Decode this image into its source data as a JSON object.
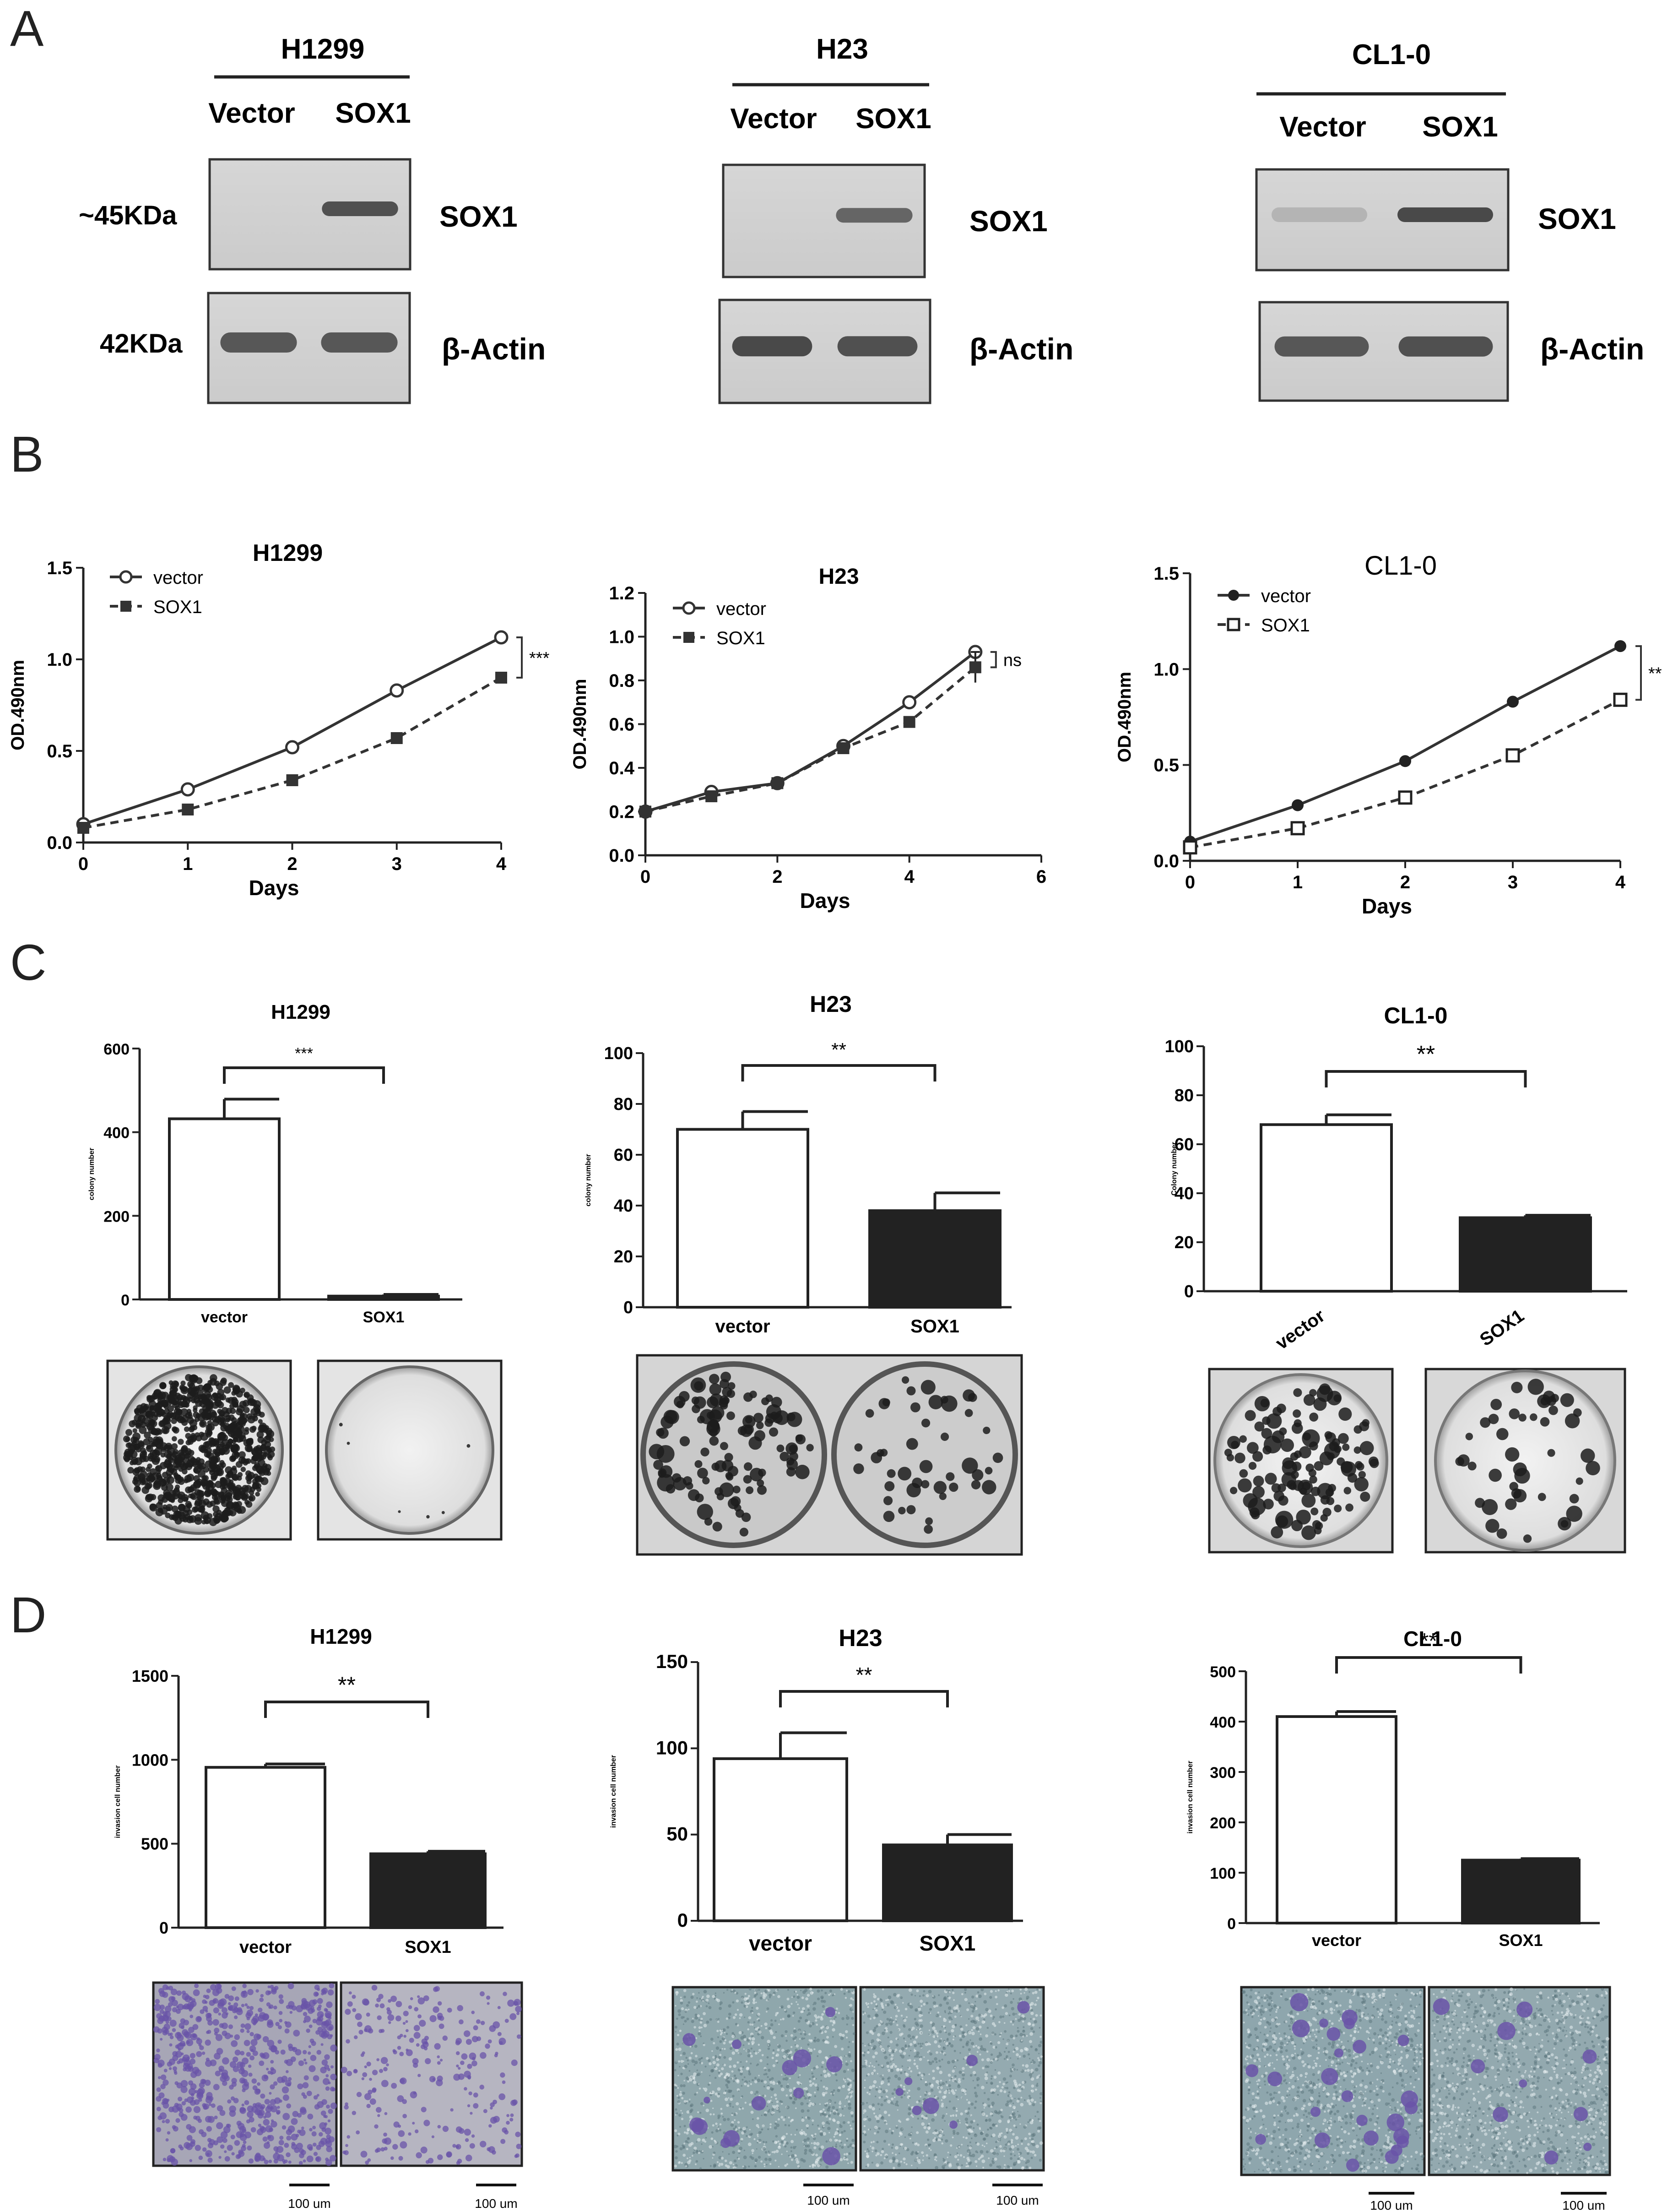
{
  "panelA": {
    "letter": "A",
    "blots": [
      {
        "cell": "H1299",
        "lanes": [
          "Vector",
          "SOX1"
        ],
        "markers": [
          "~45KDa",
          "42KDa"
        ],
        "bands": [
          "SOX1",
          "β-Actin"
        ],
        "sox1_intensity": [
          0.0,
          0.85
        ],
        "actin_intensity": [
          0.8,
          0.8
        ]
      },
      {
        "cell": "H23",
        "lanes": [
          "Vector",
          "SOX1"
        ],
        "markers": [
          "",
          ""
        ],
        "bands": [
          "SOX1",
          "β-Actin"
        ],
        "sox1_intensity": [
          0.0,
          0.7
        ],
        "actin_intensity": [
          0.9,
          0.85
        ]
      },
      {
        "cell": "CL1-0",
        "lanes": [
          "Vector",
          "SOX1"
        ],
        "markers": [
          "",
          ""
        ],
        "bands": [
          "SOX1",
          "β-Actin"
        ],
        "sox1_intensity": [
          0.15,
          0.9
        ],
        "actin_intensity": [
          0.8,
          0.85
        ]
      }
    ]
  },
  "panelB": {
    "letter": "B"
  },
  "panelC": {
    "letter": "C"
  },
  "panelD": {
    "letter": "D"
  },
  "chart_data": [
    {
      "id": "B1",
      "type": "line",
      "title": "H1299",
      "xlabel": "Days",
      "ylabel": "OD.490nm",
      "xlim": [
        0,
        4
      ],
      "ylim": [
        0,
        1.5
      ],
      "xticks": [
        "0",
        "1",
        "2",
        "3",
        "4"
      ],
      "yticks": [
        "0.0",
        "0.5",
        "1.0",
        "1.5"
      ],
      "legend_position": "top-left",
      "significance": "***",
      "series": [
        {
          "name": "vector",
          "marker": "open-circle",
          "line": "solid",
          "x": [
            0,
            1,
            2,
            3,
            4
          ],
          "y": [
            0.1,
            0.29,
            0.52,
            0.83,
            1.12
          ],
          "err": [
            0.01,
            0.01,
            0.01,
            0.01,
            0.01
          ]
        },
        {
          "name": "SOX1",
          "marker": "filled-square",
          "line": "dashed",
          "x": [
            0,
            1,
            2,
            3,
            4
          ],
          "y": [
            0.08,
            0.18,
            0.34,
            0.57,
            0.9
          ],
          "err": [
            0.01,
            0.01,
            0.01,
            0.01,
            0.01
          ]
        }
      ]
    },
    {
      "id": "B2",
      "type": "line",
      "title": "H23",
      "xlabel": "Days",
      "ylabel": "OD.490nm",
      "xlim": [
        0,
        6
      ],
      "ylim": [
        0,
        1.2
      ],
      "xticks": [
        "0",
        "2",
        "4",
        "6"
      ],
      "yticks": [
        "0.0",
        "0.2",
        "0.4",
        "0.6",
        "0.8",
        "1.0",
        "1.2"
      ],
      "legend_position": "top-left",
      "significance": "ns",
      "series": [
        {
          "name": "vector",
          "marker": "open-circle",
          "line": "solid",
          "x": [
            0,
            1,
            2,
            3,
            4,
            5
          ],
          "y": [
            0.2,
            0.29,
            0.33,
            0.5,
            0.7,
            0.93
          ],
          "err": [
            0.01,
            0.01,
            0.01,
            0.01,
            0.01,
            0.02
          ]
        },
        {
          "name": "SOX1",
          "marker": "filled-square",
          "line": "dashed",
          "x": [
            0,
            1,
            2,
            3,
            4,
            5
          ],
          "y": [
            0.2,
            0.27,
            0.33,
            0.49,
            0.61,
            0.86
          ],
          "err": [
            0.01,
            0.01,
            0.01,
            0.01,
            0.01,
            0.07
          ]
        }
      ]
    },
    {
      "id": "B3",
      "type": "line",
      "title": "CL1-0",
      "xlabel": "Days",
      "ylabel": "OD.490nm",
      "xlim": [
        0,
        4
      ],
      "ylim": [
        0,
        1.5
      ],
      "xticks": [
        "0",
        "1",
        "2",
        "3",
        "4"
      ],
      "yticks": [
        "0.0",
        "0.5",
        "1.0",
        "1.5"
      ],
      "legend_position": "top-left",
      "significance": "***",
      "series": [
        {
          "name": "vector",
          "marker": "filled-circle",
          "line": "solid",
          "x": [
            0,
            1,
            2,
            3,
            4
          ],
          "y": [
            0.1,
            0.29,
            0.52,
            0.83,
            1.12
          ],
          "err": [
            0.01,
            0.01,
            0.01,
            0.01,
            0.01
          ]
        },
        {
          "name": "SOX1",
          "marker": "open-square",
          "line": "dashed",
          "x": [
            0,
            1,
            2,
            3,
            4
          ],
          "y": [
            0.07,
            0.17,
            0.33,
            0.55,
            0.84
          ],
          "err": [
            0.01,
            0.01,
            0.01,
            0.01,
            0.02
          ]
        }
      ]
    },
    {
      "id": "C1",
      "type": "bar",
      "title": "H1299",
      "ylabel": "colony number",
      "categories": [
        "vector",
        "SOX1"
      ],
      "values": [
        432,
        8
      ],
      "err": [
        47,
        4
      ],
      "ylim": [
        0,
        600
      ],
      "yticks": [
        "0",
        "200",
        "400",
        "600"
      ],
      "significance": "***"
    },
    {
      "id": "C2",
      "type": "bar",
      "title": "H23",
      "ylabel": "colony number",
      "categories": [
        "vector",
        "SOX1"
      ],
      "values": [
        70,
        38
      ],
      "err": [
        7,
        7
      ],
      "ylim": [
        0,
        100
      ],
      "yticks": [
        "0",
        "20",
        "40",
        "60",
        "80",
        "100"
      ],
      "significance": "**"
    },
    {
      "id": "C3",
      "type": "bar",
      "title": "CL1-0",
      "ylabel": "Colony number",
      "categories": [
        "vector",
        "SOX1"
      ],
      "values": [
        68,
        30
      ],
      "err": [
        4,
        1
      ],
      "ylim": [
        0,
        100
      ],
      "yticks": [
        "0",
        "20",
        "40",
        "60",
        "80",
        "100"
      ],
      "significance": "**",
      "rotated_xlabels": true
    },
    {
      "id": "D1",
      "type": "bar",
      "title": "H1299",
      "ylabel": "invasion cell number",
      "categories": [
        "vector",
        "SOX1"
      ],
      "values": [
        955,
        440
      ],
      "err": [
        20,
        15
      ],
      "ylim": [
        0,
        1500
      ],
      "yticks": [
        "0",
        "500",
        "1000",
        "1500"
      ],
      "significance": "**"
    },
    {
      "id": "D2",
      "type": "bar",
      "title": "H23",
      "ylabel": "invasion cell number",
      "categories": [
        "vector",
        "SOX1"
      ],
      "values": [
        94,
        44
      ],
      "err": [
        15,
        6
      ],
      "ylim": [
        0,
        150
      ],
      "yticks": [
        "0",
        "50",
        "100",
        "150"
      ],
      "significance": "**"
    },
    {
      "id": "D3",
      "type": "bar",
      "title": "CL1-0",
      "ylabel": "invasion cell number",
      "categories": [
        "vector",
        "SOX1"
      ],
      "values": [
        410,
        125
      ],
      "err": [
        10,
        3
      ],
      "ylim": [
        0,
        500
      ],
      "yticks": [
        "0",
        "100",
        "200",
        "300",
        "400",
        "500"
      ],
      "significance": "**"
    }
  ],
  "images": {
    "colonies": [
      {
        "cell": "H1299",
        "density": [
          "high",
          "none"
        ]
      },
      {
        "cell": "H23",
        "density": [
          "medium",
          "low"
        ]
      },
      {
        "cell": "CL1-0",
        "density": [
          "medium",
          "low"
        ]
      }
    ],
    "invasion": [
      {
        "cell": "H1299",
        "scalebar": "100 um",
        "style": "violet-dense"
      },
      {
        "cell": "H23",
        "scalebar": "100 um",
        "style": "teal-sparse"
      },
      {
        "cell": "CL1-0",
        "scalebar": "100 um",
        "style": "teal-sparse"
      }
    ],
    "colors": {
      "micro_violet_bg": "#a7a6b6",
      "micro_teal_bg": "#8fa7ac",
      "stain": "#6a54a8",
      "bar_fill": "#222222"
    }
  }
}
